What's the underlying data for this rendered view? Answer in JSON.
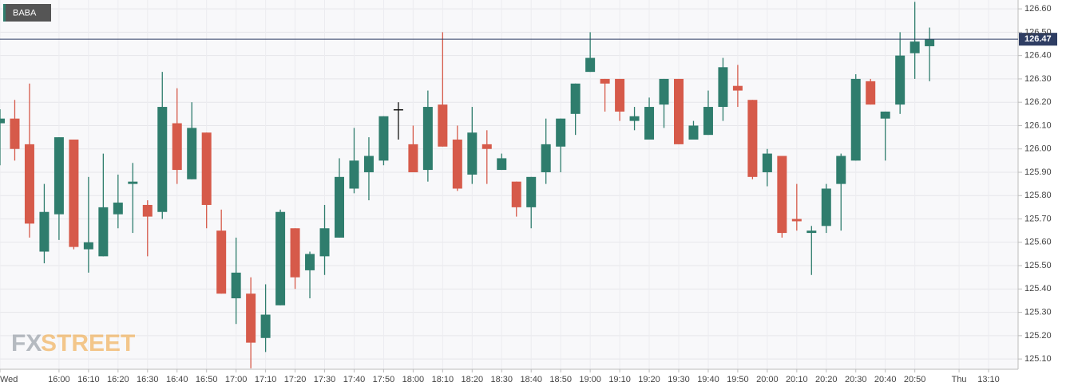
{
  "chart_data": {
    "type": "candlestick",
    "x": [
      "15:40",
      "15:45",
      "15:50",
      "15:55",
      "16:00",
      "16:05",
      "16:10",
      "16:15",
      "16:20",
      "16:25",
      "16:30",
      "16:35",
      "16:40",
      "16:45",
      "16:50",
      "16:55",
      "17:00",
      "17:05",
      "17:10",
      "17:15",
      "17:20",
      "17:25",
      "17:30",
      "17:35",
      "17:40",
      "17:45",
      "17:50",
      "17:55",
      "18:00",
      "18:05",
      "18:10",
      "18:15",
      "18:20",
      "18:25",
      "18:30",
      "18:35",
      "18:40",
      "18:45",
      "18:50",
      "18:55",
      "19:00",
      "19:05",
      "19:10",
      "19:15",
      "19:20",
      "19:25",
      "19:30",
      "19:35",
      "19:40",
      "19:45",
      "19:50",
      "19:55",
      "20:00",
      "20:05",
      "20:10",
      "20:15",
      "20:20",
      "20:25",
      "20:30",
      "20:35",
      "20:40",
      "20:45",
      "20:50",
      "20:55"
    ],
    "series": [
      {
        "name": "BABA",
        "open": [
          126.11,
          126.13,
          126.02,
          125.56,
          125.72,
          126.04,
          125.57,
          125.54,
          125.72,
          125.85,
          125.76,
          125.73,
          126.11,
          125.87,
          126.07,
          125.65,
          125.36,
          125.38,
          125.19,
          125.33,
          125.66,
          125.48,
          125.54,
          125.62,
          125.83,
          125.9,
          125.95,
          126.17,
          126.02,
          125.91,
          126.19,
          126.04,
          125.89,
          126.02,
          125.91,
          125.86,
          125.75,
          125.9,
          126.01,
          126.15,
          126.33,
          126.3,
          126.3,
          126.12,
          126.04,
          126.19,
          126.3,
          126.04,
          126.06,
          126.18,
          126.27,
          126.21,
          125.9,
          125.97,
          125.7,
          125.64,
          125.67,
          125.85,
          125.95,
          126.29,
          126.13,
          126.19,
          126.41,
          126.44
        ],
        "high": [
          126.17,
          126.21,
          126.28,
          125.85,
          126.05,
          126.04,
          125.88,
          125.98,
          125.89,
          125.94,
          125.78,
          126.33,
          126.26,
          126.2,
          126.07,
          125.74,
          125.62,
          125.45,
          125.42,
          125.74,
          125.66,
          125.56,
          125.76,
          125.96,
          126.09,
          126.05,
          126.14,
          126.2,
          126.1,
          126.25,
          126.5,
          126.1,
          126.18,
          126.08,
          125.98,
          125.86,
          125.88,
          126.13,
          126.13,
          126.28,
          126.5,
          126.3,
          126.3,
          126.18,
          126.22,
          126.3,
          126.3,
          126.12,
          126.25,
          126.39,
          126.36,
          126.21,
          126.0,
          125.97,
          125.85,
          125.67,
          125.85,
          125.98,
          126.32,
          126.3,
          126.16,
          126.5,
          126.63,
          126.52
        ],
        "low": [
          125.93,
          125.95,
          125.62,
          125.51,
          125.61,
          125.57,
          125.47,
          125.54,
          125.66,
          125.64,
          125.54,
          125.7,
          125.85,
          125.87,
          125.66,
          125.38,
          125.25,
          125.06,
          125.13,
          125.33,
          125.4,
          125.36,
          125.46,
          125.62,
          125.81,
          125.78,
          125.93,
          126.04,
          125.9,
          125.86,
          126.01,
          125.82,
          125.85,
          125.85,
          125.91,
          125.71,
          125.66,
          125.85,
          125.9,
          126.06,
          126.33,
          126.16,
          126.12,
          126.08,
          126.04,
          126.09,
          126.02,
          126.04,
          126.06,
          126.12,
          126.18,
          125.87,
          125.84,
          125.62,
          125.65,
          125.46,
          125.64,
          125.65,
          125.95,
          126.19,
          125.95,
          126.15,
          126.3,
          126.29
        ],
        "close": [
          126.13,
          126.0,
          125.68,
          125.73,
          126.05,
          125.58,
          125.6,
          125.75,
          125.77,
          125.86,
          125.71,
          126.18,
          125.91,
          126.09,
          125.76,
          125.38,
          125.47,
          125.17,
          125.29,
          125.73,
          125.45,
          125.55,
          125.66,
          125.88,
          125.95,
          125.97,
          126.14,
          126.17,
          125.9,
          126.18,
          126.01,
          125.83,
          126.07,
          126.0,
          125.96,
          125.75,
          125.88,
          126.02,
          126.13,
          126.28,
          126.39,
          126.28,
          126.16,
          126.14,
          126.18,
          126.3,
          126.02,
          126.1,
          126.18,
          126.35,
          126.25,
          125.88,
          125.98,
          125.64,
          125.69,
          125.65,
          125.83,
          125.97,
          126.3,
          126.19,
          126.16,
          126.4,
          126.46,
          126.47
        ]
      }
    ],
    "up_color": "#2f7d6d",
    "down_color": "#d65a4a",
    "flat_color": "#111111",
    "last_price": 126.47,
    "last_price_color": "#2e3d63",
    "xlim": [
      "15:40",
      "21:25"
    ],
    "xticks": [
      {
        "value": "15:40",
        "label": "Wed"
      },
      {
        "value": "16:00",
        "label": "16:00"
      },
      {
        "value": "16:10",
        "label": "16:10"
      },
      {
        "value": "16:20",
        "label": "16:20"
      },
      {
        "value": "16:30",
        "label": "16:30"
      },
      {
        "value": "16:40",
        "label": "16:40"
      },
      {
        "value": "16:50",
        "label": "16:50"
      },
      {
        "value": "17:00",
        "label": "17:00"
      },
      {
        "value": "17:10",
        "label": "17:10"
      },
      {
        "value": "17:20",
        "label": "17:20"
      },
      {
        "value": "17:30",
        "label": "17:30"
      },
      {
        "value": "17:40",
        "label": "17:40"
      },
      {
        "value": "17:50",
        "label": "17:50"
      },
      {
        "value": "18:00",
        "label": "18:00"
      },
      {
        "value": "18:10",
        "label": "18:10"
      },
      {
        "value": "18:20",
        "label": "18:20"
      },
      {
        "value": "18:30",
        "label": "18:30"
      },
      {
        "value": "18:40",
        "label": "18:40"
      },
      {
        "value": "18:50",
        "label": "18:50"
      },
      {
        "value": "19:00",
        "label": "19:00"
      },
      {
        "value": "19:10",
        "label": "19:10"
      },
      {
        "value": "19:20",
        "label": "19:20"
      },
      {
        "value": "19:30",
        "label": "19:30"
      },
      {
        "value": "19:40",
        "label": "19:40"
      },
      {
        "value": "19:50",
        "label": "19:50"
      },
      {
        "value": "20:00",
        "label": "20:00"
      },
      {
        "value": "20:10",
        "label": "20:10"
      },
      {
        "value": "20:20",
        "label": "20:20"
      },
      {
        "value": "20:30",
        "label": "20:30"
      },
      {
        "value": "20:40",
        "label": "20:40"
      },
      {
        "value": "20:50",
        "label": "20:50"
      },
      {
        "value": "21:05",
        "label": "Thu"
      },
      {
        "value": "21:15",
        "label": "13:10"
      }
    ],
    "ylim": [
      125.056,
      126.638
    ],
    "yticks": [
      {
        "value": 125.1,
        "label": "125.10"
      },
      {
        "value": 125.2,
        "label": "125.20"
      },
      {
        "value": 125.3,
        "label": "125.30"
      },
      {
        "value": 125.4,
        "label": "125.40"
      },
      {
        "value": 125.5,
        "label": "125.50"
      },
      {
        "value": 125.6,
        "label": "125.60"
      },
      {
        "value": 125.7,
        "label": "125.70"
      },
      {
        "value": 125.8,
        "label": "125.80"
      },
      {
        "value": 125.9,
        "label": "125.90"
      },
      {
        "value": 126.0,
        "label": "126.00"
      },
      {
        "value": 126.1,
        "label": "126.10"
      },
      {
        "value": 126.2,
        "label": "126.20"
      },
      {
        "value": 126.3,
        "label": "126.30"
      },
      {
        "value": 126.4,
        "label": "126.40"
      },
      {
        "value": 126.5,
        "label": "126.50"
      },
      {
        "value": 126.6,
        "label": "126.60"
      }
    ],
    "grid": true
  },
  "watermark": {
    "left": "FX",
    "right": "STREET"
  }
}
